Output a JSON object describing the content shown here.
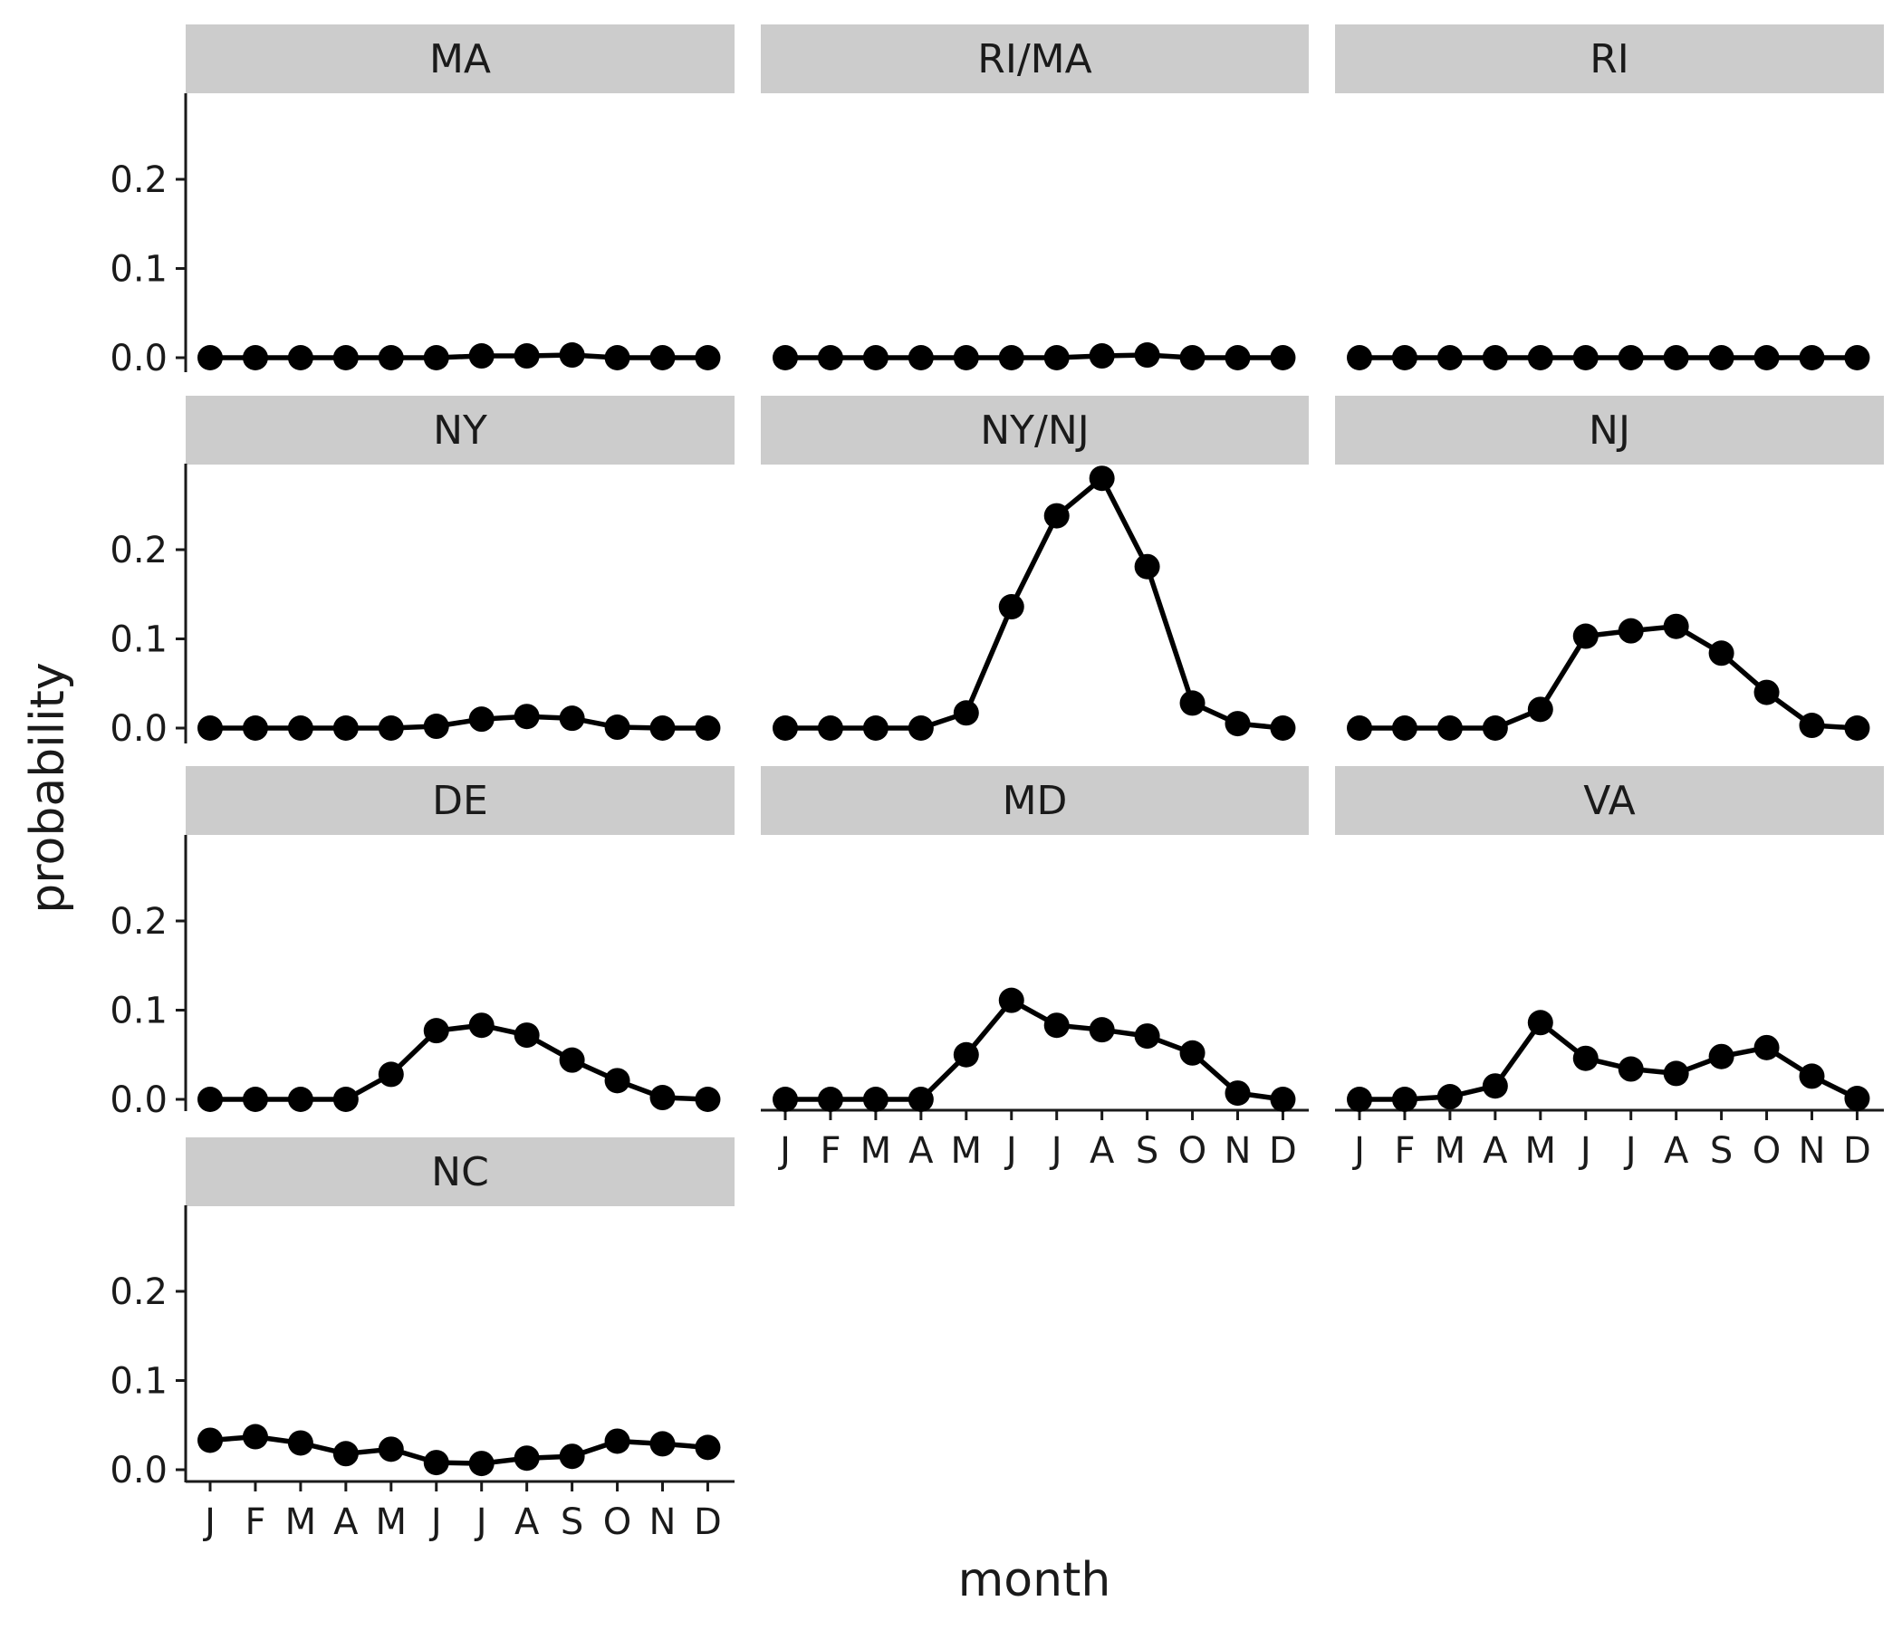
{
  "chart_data": {
    "type": "line",
    "layout": "facet_wrap",
    "xlabel": "month",
    "ylabel": "probability",
    "x_tick_labels": [
      "J",
      "F",
      "M",
      "A",
      "M",
      "J",
      "J",
      "A",
      "S",
      "O",
      "N",
      "D"
    ],
    "y_ticks": [
      0.0,
      0.1,
      0.2
    ],
    "y_tick_labels": [
      "0.0",
      "0.1",
      "0.2"
    ],
    "ylim": [
      -0.012,
      0.29
    ],
    "series_color": "#000000",
    "strip_color": "#cccccc",
    "grid": false,
    "panels": [
      {
        "name": "MA",
        "values": [
          0.0,
          0.0,
          0.0,
          0.0,
          0.0,
          0.0,
          0.002,
          0.002,
          0.003,
          0.0,
          0.0,
          0.0
        ]
      },
      {
        "name": "RI/MA",
        "values": [
          0.0,
          0.0,
          0.0,
          0.0,
          0.0,
          0.0,
          0.0,
          0.002,
          0.003,
          0.0,
          0.0,
          0.0
        ]
      },
      {
        "name": "RI",
        "values": [
          0.0,
          0.0,
          0.0,
          0.0,
          0.0,
          0.0,
          0.0,
          0.0,
          0.0,
          0.0,
          0.0,
          0.0
        ]
      },
      {
        "name": "NY",
        "values": [
          0.0,
          0.0,
          0.0,
          0.0,
          0.0,
          0.002,
          0.01,
          0.013,
          0.011,
          0.001,
          0.0,
          0.0
        ]
      },
      {
        "name": "NY/NJ",
        "values": [
          0.0,
          0.0,
          0.0,
          0.0,
          0.017,
          0.136,
          0.238,
          0.28,
          0.181,
          0.028,
          0.005,
          0.0
        ]
      },
      {
        "name": "NJ",
        "values": [
          0.0,
          0.0,
          0.0,
          0.0,
          0.021,
          0.103,
          0.109,
          0.114,
          0.084,
          0.04,
          0.003,
          0.0
        ]
      },
      {
        "name": "DE",
        "values": [
          0.0,
          0.0,
          0.0,
          0.0,
          0.028,
          0.077,
          0.083,
          0.072,
          0.044,
          0.021,
          0.002,
          0.0
        ]
      },
      {
        "name": "MD",
        "values": [
          0.0,
          0.0,
          0.0,
          0.0,
          0.05,
          0.111,
          0.083,
          0.078,
          0.071,
          0.052,
          0.007,
          0.0
        ]
      },
      {
        "name": "VA",
        "values": [
          0.0,
          0.0,
          0.003,
          0.015,
          0.086,
          0.046,
          0.034,
          0.029,
          0.048,
          0.058,
          0.026,
          0.001
        ]
      },
      {
        "name": "NC",
        "values": [
          0.033,
          0.037,
          0.03,
          0.018,
          0.023,
          0.008,
          0.007,
          0.013,
          0.015,
          0.032,
          0.029,
          0.025
        ]
      }
    ]
  }
}
